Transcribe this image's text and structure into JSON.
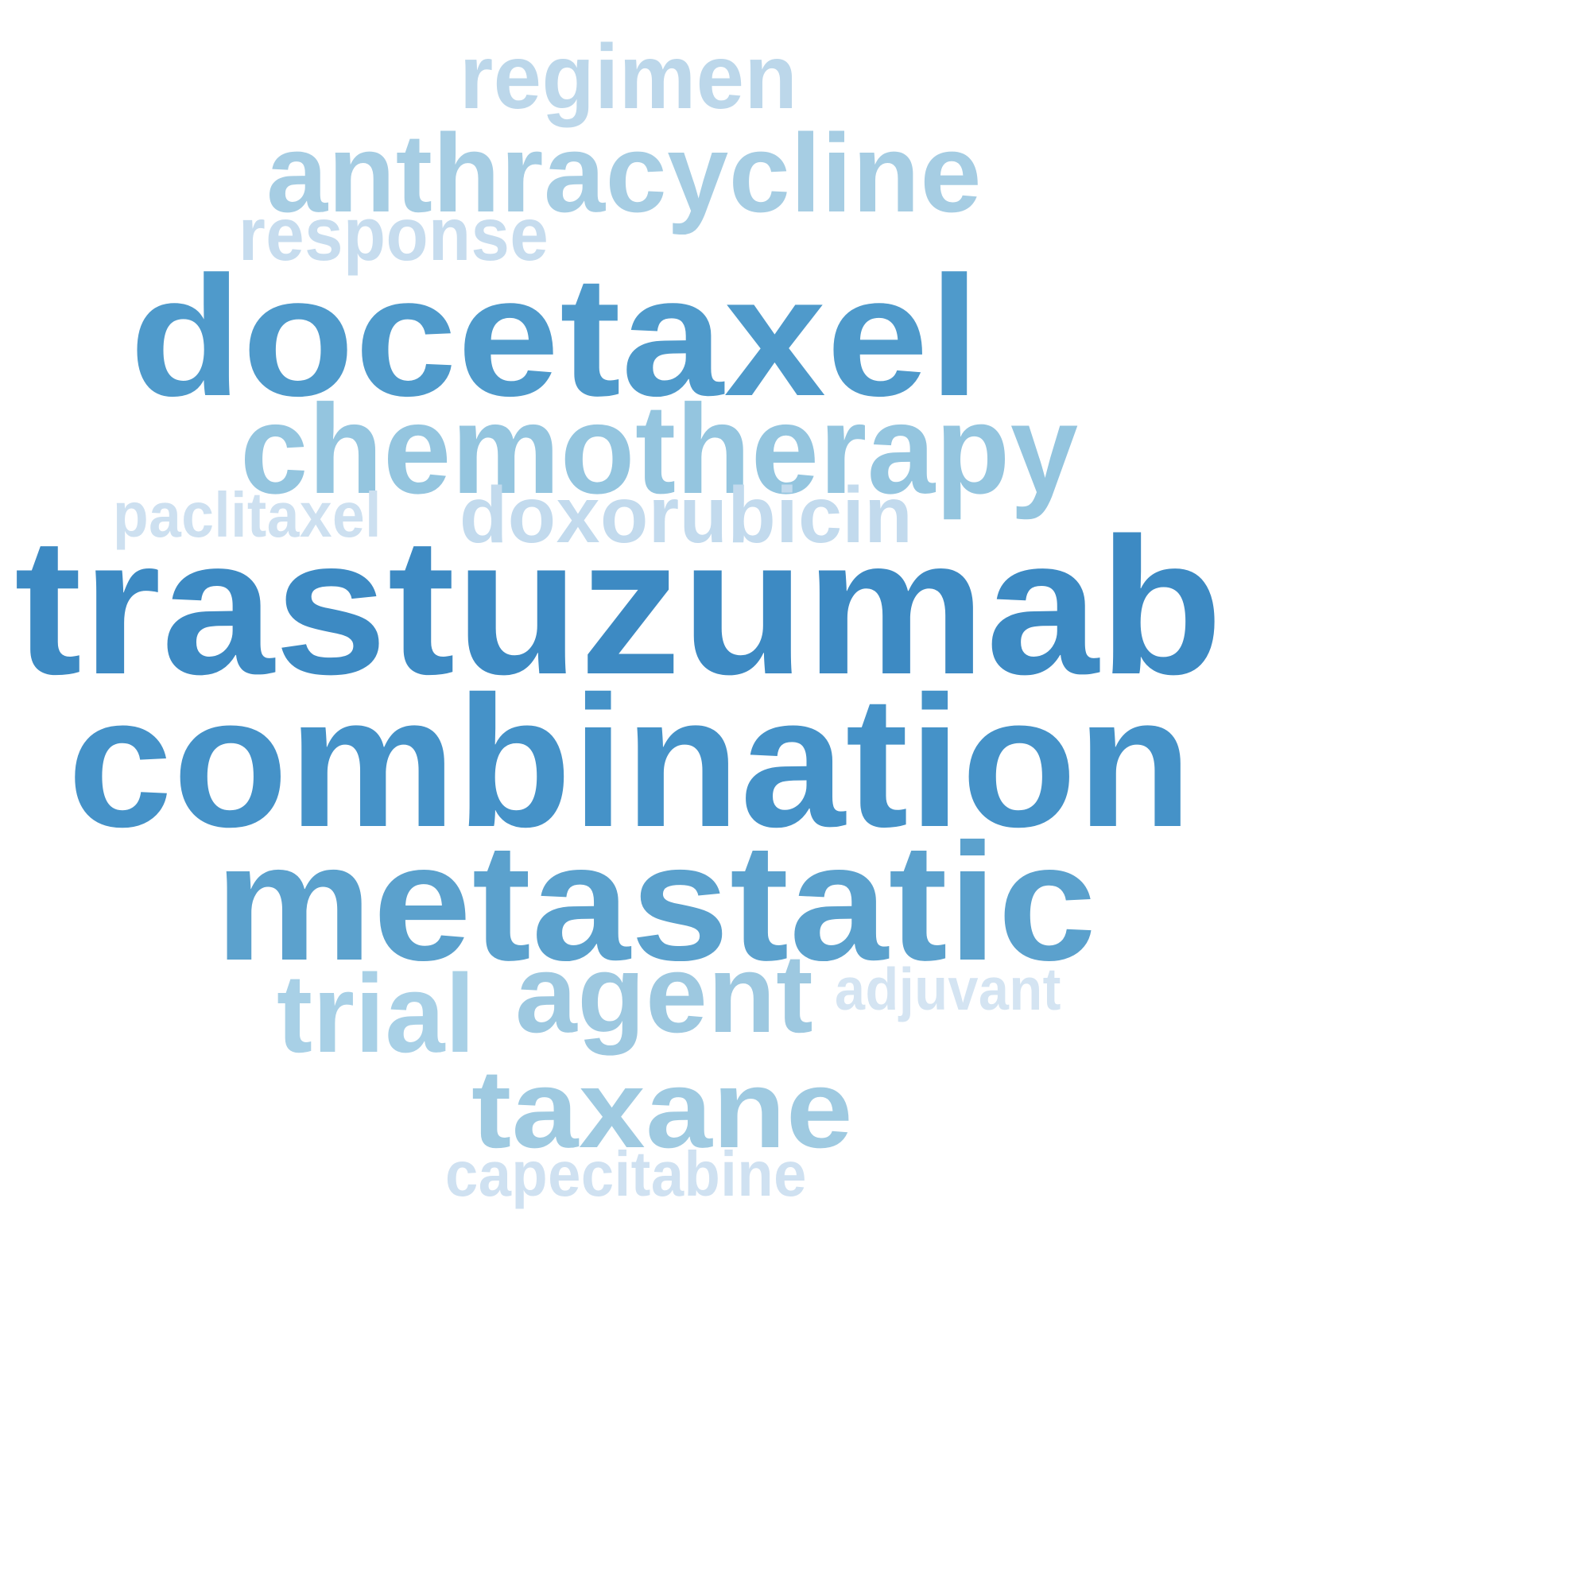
{
  "word_cloud": {
    "words": [
      {
        "text": "trastuzumab",
        "weight": 1.0,
        "color": "#3d8ac3"
      },
      {
        "text": "combination",
        "weight": 0.95,
        "color": "#4592c8"
      },
      {
        "text": "docetaxel",
        "weight": 0.88,
        "color": "#4f9acb"
      },
      {
        "text": "metastatic",
        "weight": 0.85,
        "color": "#5ba1cd"
      },
      {
        "text": "chemotherapy",
        "weight": 0.62,
        "color": "#94c5df"
      },
      {
        "text": "anthracycline",
        "weight": 0.55,
        "color": "#a6cde3"
      },
      {
        "text": "agent",
        "weight": 0.52,
        "color": "#9dc8e0"
      },
      {
        "text": "taxane",
        "weight": 0.52,
        "color": "#9fcae1"
      },
      {
        "text": "trial",
        "weight": 0.5,
        "color": "#a8d0e6"
      },
      {
        "text": "regimen",
        "weight": 0.4,
        "color": "#bcd7ea"
      },
      {
        "text": "doxorubicin",
        "weight": 0.4,
        "color": "#c2daed"
      },
      {
        "text": "response",
        "weight": 0.33,
        "color": "#c6dcee"
      },
      {
        "text": "paclitaxel",
        "weight": 0.3,
        "color": "#cde0f0"
      },
      {
        "text": "capecitabine",
        "weight": 0.28,
        "color": "#cfe1f1"
      },
      {
        "text": "adjuvant",
        "weight": 0.25,
        "color": "#d4e4f2"
      }
    ]
  }
}
